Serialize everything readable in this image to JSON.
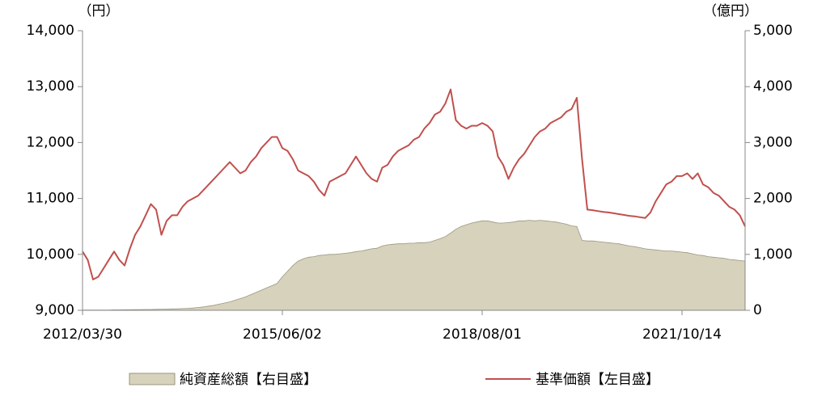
{
  "chart_data": {
    "type": "line",
    "y_unit_label": "（円）",
    "y2_unit_label": "（億円）",
    "categories": [
      "2012/03/30",
      null,
      null,
      null,
      null,
      null,
      null,
      null,
      null,
      null,
      null,
      null,
      null,
      null,
      null,
      null,
      null,
      null,
      null,
      null,
      null,
      null,
      null,
      null,
      null,
      null,
      null,
      null,
      null,
      null,
      null,
      null,
      null,
      null,
      null,
      null,
      null,
      null,
      "2015/06/02",
      null,
      null,
      null,
      null,
      null,
      null,
      null,
      null,
      null,
      null,
      null,
      null,
      null,
      null,
      null,
      null,
      null,
      null,
      null,
      null,
      null,
      null,
      null,
      null,
      null,
      null,
      null,
      null,
      null,
      null,
      null,
      null,
      null,
      null,
      null,
      null,
      null,
      "2018/08/01",
      null,
      null,
      null,
      null,
      null,
      null,
      null,
      null,
      null,
      null,
      null,
      null,
      null,
      null,
      null,
      null,
      null,
      null,
      null,
      null,
      null,
      null,
      null,
      null,
      null,
      null,
      null,
      null,
      null,
      null,
      null,
      null,
      null,
      null,
      null,
      null,
      null,
      "2021/10/14",
      null,
      null,
      null,
      null,
      null,
      null,
      null,
      null,
      null,
      null,
      null,
      null
    ],
    "series": [
      {
        "name": "純資産総額【右目盛】",
        "color": "#d6d2bc",
        "fill_type": "area",
        "axis": "y2",
        "values": [
          5,
          5,
          5,
          5,
          5,
          5,
          8,
          8,
          10,
          10,
          12,
          12,
          15,
          15,
          18,
          20,
          22,
          25,
          28,
          30,
          35,
          40,
          50,
          60,
          75,
          90,
          110,
          130,
          150,
          180,
          210,
          240,
          280,
          320,
          360,
          400,
          440,
          480,
          600,
          700,
          800,
          880,
          920,
          950,
          960,
          980,
          990,
          1000,
          1000,
          1010,
          1020,
          1030,
          1050,
          1060,
          1080,
          1100,
          1110,
          1150,
          1170,
          1180,
          1190,
          1190,
          1200,
          1200,
          1210,
          1210,
          1220,
          1250,
          1280,
          1320,
          1380,
          1450,
          1500,
          1530,
          1560,
          1580,
          1600,
          1600,
          1580,
          1560,
          1560,
          1570,
          1580,
          1600,
          1600,
          1610,
          1600,
          1610,
          1600,
          1590,
          1580,
          1560,
          1540,
          1510,
          1500,
          1250,
          1240,
          1240,
          1230,
          1220,
          1210,
          1200,
          1190,
          1170,
          1150,
          1140,
          1120,
          1100,
          1090,
          1080,
          1070,
          1060,
          1060,
          1050,
          1040,
          1030,
          1010,
          990,
          980,
          960,
          950,
          940,
          930,
          910,
          900,
          890,
          880
        ]
      },
      {
        "name": "基準価額【左目盛】",
        "color": "#c0504d",
        "fill_type": "line",
        "axis": "y",
        "values": [
          10050,
          9900,
          9550,
          9600,
          9750,
          9900,
          10050,
          9900,
          9800,
          10100,
          10350,
          10500,
          10700,
          10900,
          10800,
          10350,
          10600,
          10700,
          10700,
          10850,
          10950,
          11000,
          11050,
          11150,
          11250,
          11350,
          11450,
          11550,
          11650,
          11550,
          11450,
          11500,
          11650,
          11750,
          11900,
          12000,
          12100,
          12100,
          11900,
          11850,
          11700,
          11500,
          11450,
          11400,
          11300,
          11150,
          11050,
          11300,
          11350,
          11400,
          11450,
          11600,
          11750,
          11600,
          11450,
          11350,
          11300,
          11550,
          11600,
          11750,
          11850,
          11900,
          11950,
          12050,
          12100,
          12250,
          12350,
          12500,
          12550,
          12700,
          12950,
          12400,
          12300,
          12250,
          12300,
          12300,
          12350,
          12300,
          12200,
          11750,
          11600,
          11350,
          11550,
          11700,
          11800,
          11950,
          12100,
          12200,
          12250,
          12350,
          12400,
          12450,
          12550,
          12600,
          12800,
          11700,
          10800,
          10790,
          10775,
          10760,
          10750,
          10735,
          10720,
          10705,
          10690,
          10680,
          10665,
          10650,
          10750,
          10950,
          11100,
          11250,
          11300,
          11400,
          11400,
          11450,
          11350,
          11450,
          11250,
          11200,
          11100,
          11050,
          10950,
          10850,
          10800,
          10700,
          10500
        ]
      }
    ],
    "ylim": [
      9000,
      14000
    ],
    "yticks": [
      {
        "value": 9000,
        "label": "9,000"
      },
      {
        "value": 10000,
        "label": "10,000"
      },
      {
        "value": 11000,
        "label": "11,000"
      },
      {
        "value": 12000,
        "label": "12,000"
      },
      {
        "value": 13000,
        "label": "13,000"
      },
      {
        "value": 14000,
        "label": "14,000"
      }
    ],
    "y2lim": [
      0,
      5000
    ],
    "y2ticks": [
      0,
      {
        "value": 1000,
        "label": "1,000"
      },
      {
        "value": 2000,
        "label": "2,000"
      },
      {
        "value": 3000,
        "label": "3,000"
      },
      {
        "value": 4000,
        "label": "4,000"
      },
      {
        "value": 5000,
        "label": "5,000"
      }
    ]
  }
}
